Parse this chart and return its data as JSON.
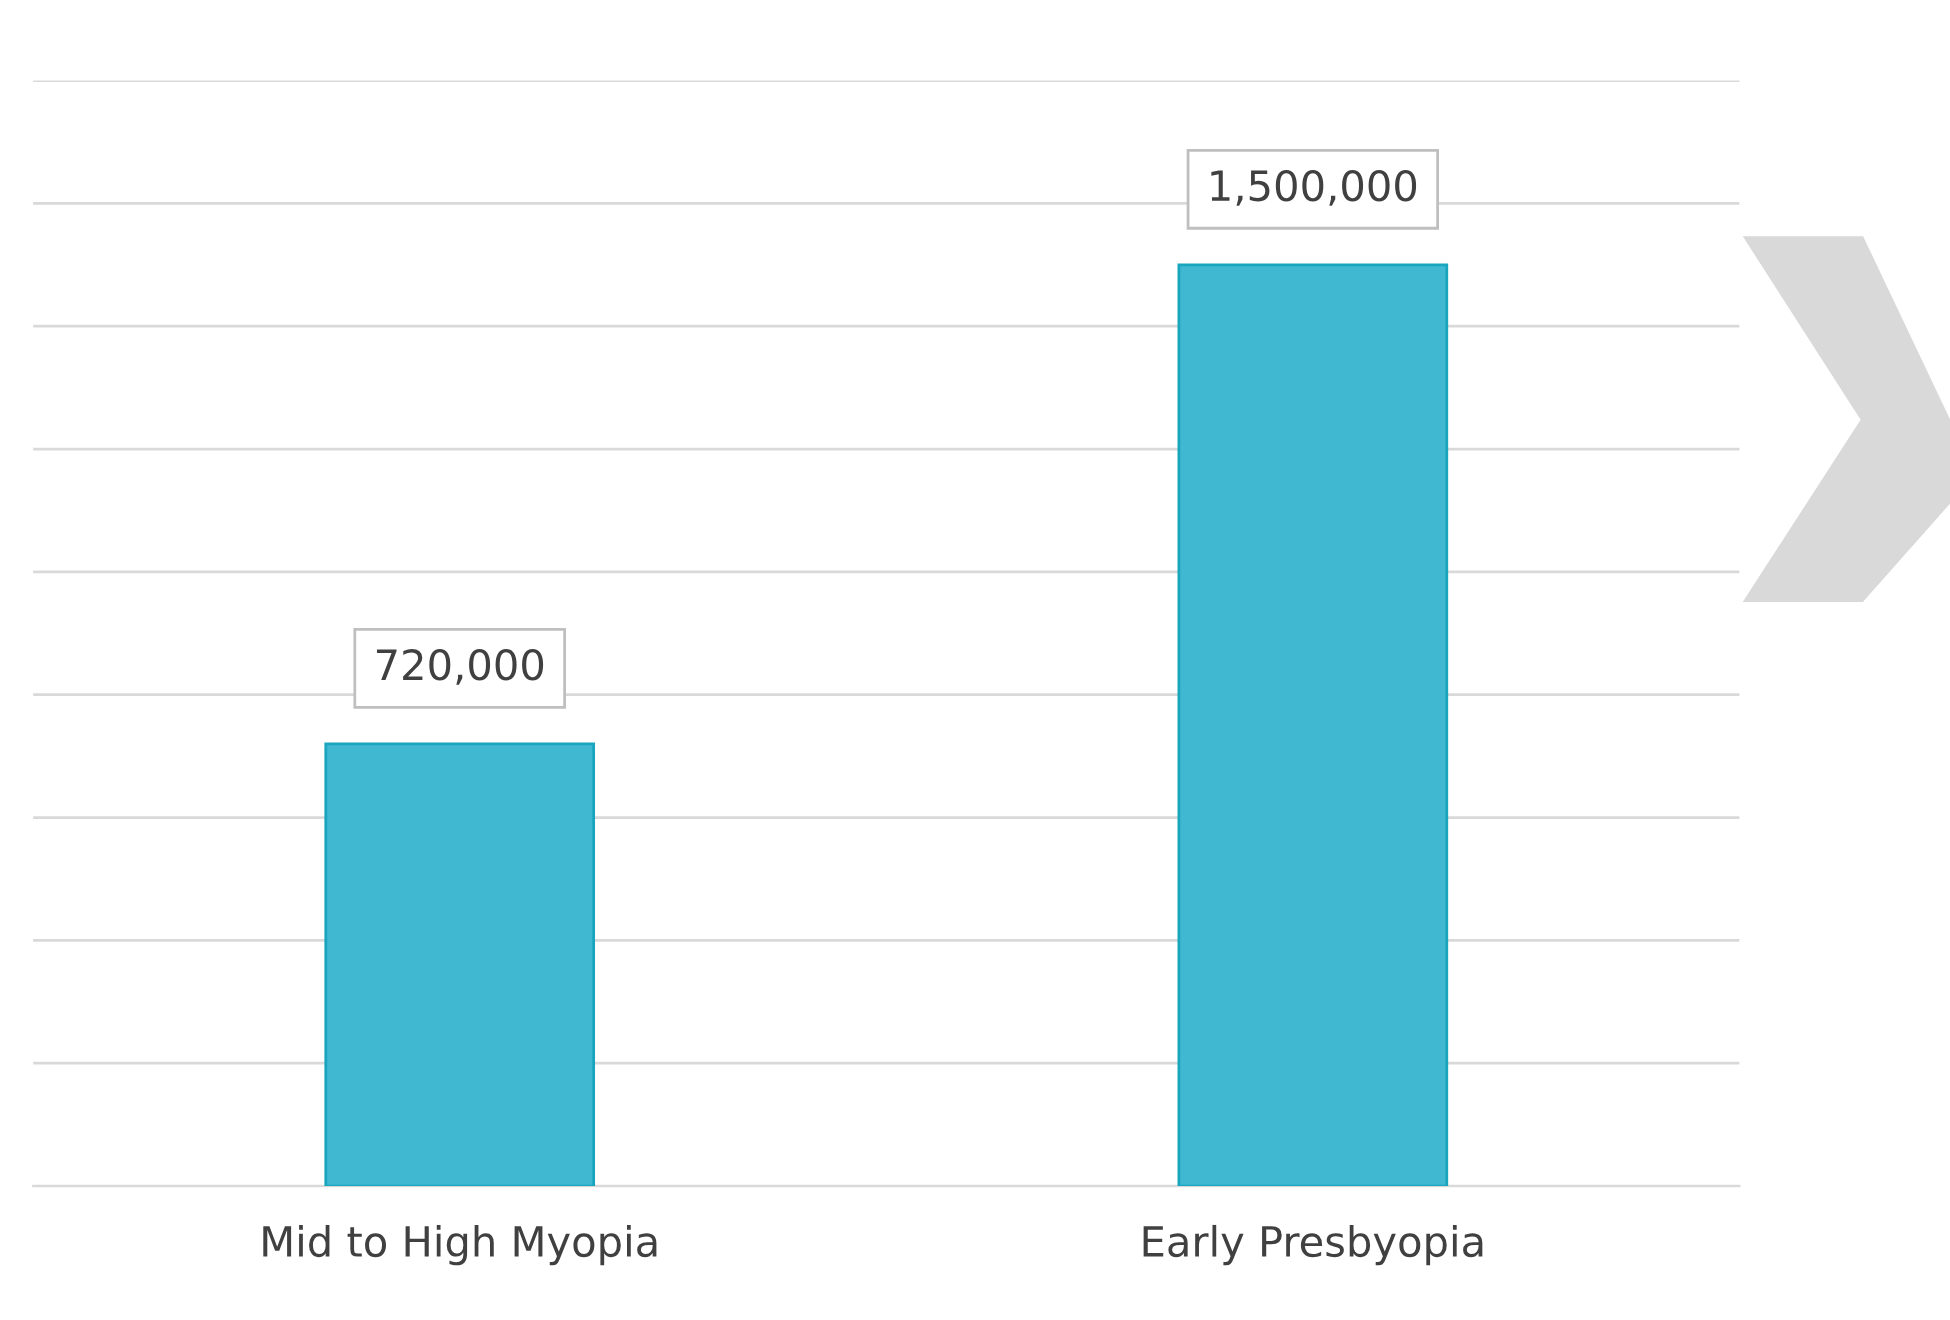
{
  "chart_data": {
    "type": "bar",
    "categories": [
      "Mid to High Myopia",
      "Early Presbyopia"
    ],
    "values": [
      720000,
      1500000
    ],
    "color": "#41b8d2",
    "value_labels": [
      "720,000",
      "1,500,000"
    ],
    "grid": "y",
    "tick_labels": "x"
  }
}
